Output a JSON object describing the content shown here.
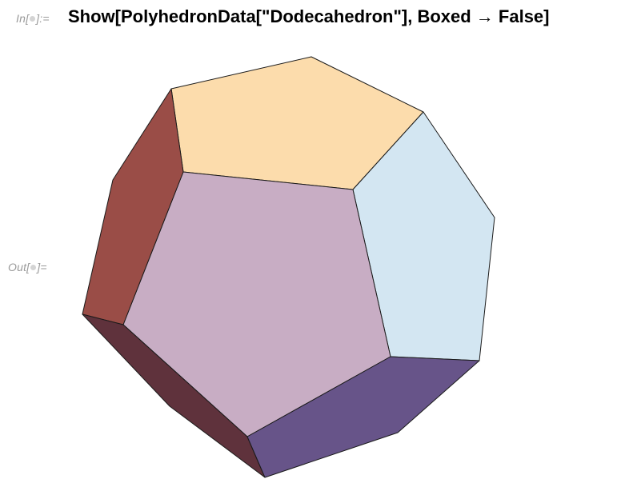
{
  "notebook": {
    "input_cell": {
      "label_prefix": "In[",
      "label_suffix": "]:=",
      "code": "Show[PolyhedronData[\"Dodecahedron\"], Boxed → False]"
    },
    "output_cell": {
      "label_prefix": "Out[",
      "label_suffix": "]="
    },
    "graphic": {
      "object": "Dodecahedron",
      "face_colors": {
        "top": "#fcdcac",
        "right": "#d3e6f2",
        "front": "#c8adc4",
        "left": "#9a4d47",
        "bottom_left": "#5f323c",
        "bottom_right": "#675489"
      },
      "edge_color": "#1a1a1a"
    }
  }
}
